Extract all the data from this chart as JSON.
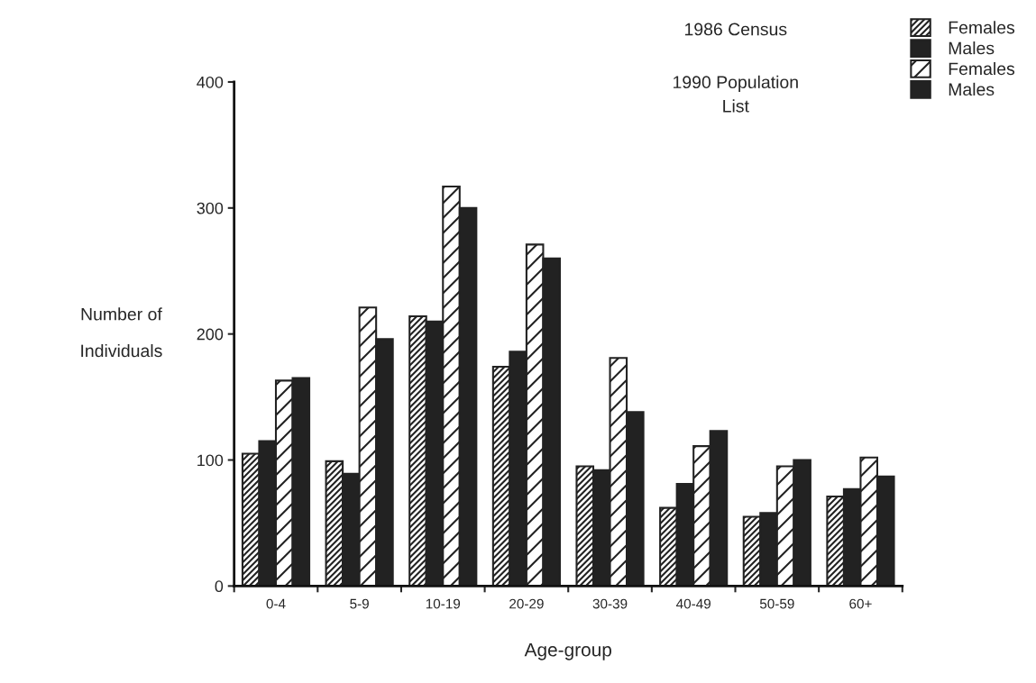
{
  "chart_data": {
    "type": "bar",
    "xlabel": "Age-group",
    "ylabel": "Number of\nIndividuals",
    "categories": [
      "0-4",
      "5-9",
      "10-19",
      "20-29",
      "30-39",
      "40-49",
      "50-59",
      "60+"
    ],
    "series": [
      {
        "name": "Females",
        "color": "#222222",
        "values": [
          105,
          99,
          214,
          174,
          95,
          62,
          55,
          71
        ]
      },
      {
        "name": "Males",
        "color": "#222222",
        "values": [
          115,
          89,
          210,
          186,
          92,
          81,
          58,
          77
        ]
      },
      {
        "name": "Females",
        "color": "#222222",
        "values": [
          163,
          221,
          317,
          271,
          181,
          111,
          95,
          102
        ]
      },
      {
        "name": "Males",
        "color": "#222222",
        "values": [
          165,
          196,
          300,
          260,
          138,
          123,
          100,
          87
        ]
      }
    ],
    "ylim": [
      0,
      400
    ],
    "yticks": [
      0,
      100,
      200,
      300,
      400
    ],
    "annotations": [
      "1986 Census",
      "1990 Population\nList"
    ],
    "legend": "top right",
    "grid": false
  }
}
